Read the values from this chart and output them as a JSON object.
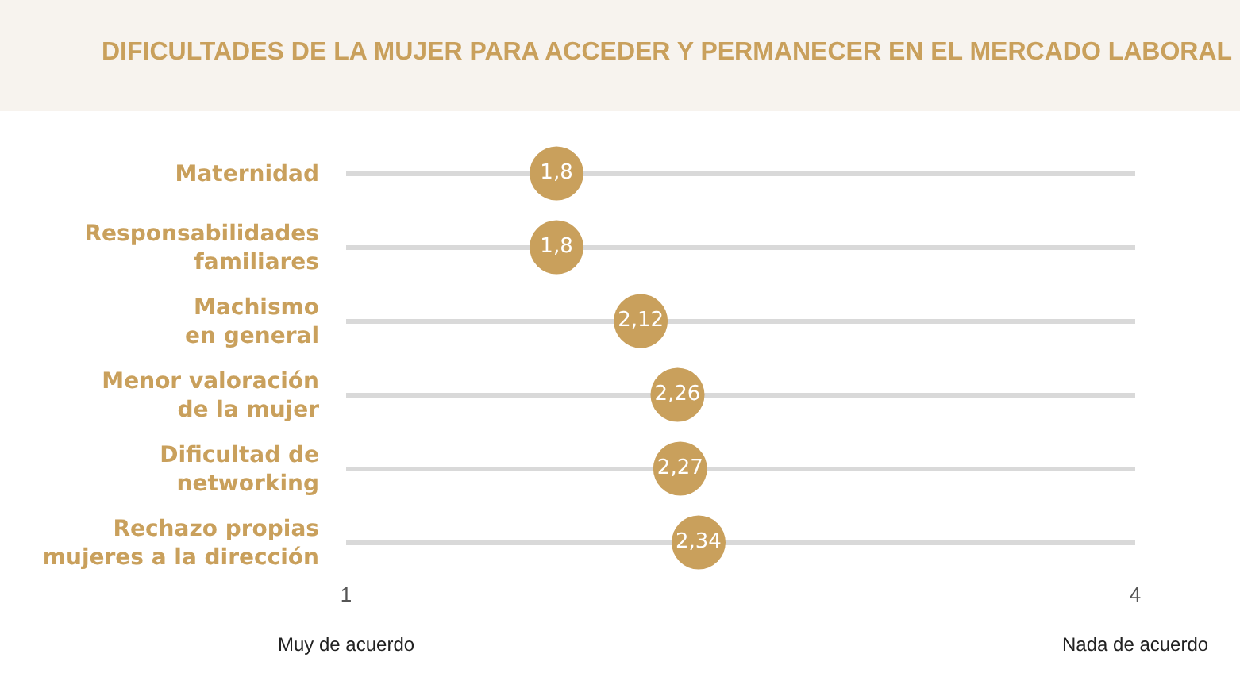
{
  "chart_data": {
    "type": "scatter",
    "orientation": "horizontal",
    "title": "DIFICULTADES DE LA MUJER PARA ACCEDER Y PERMANECER EN EL MERCADO LABORAL",
    "categories": [
      "Maternidad",
      "Responsabilidades\nfamiliares",
      "Machismo\nen general",
      "Menor valoración\nde la mujer",
      "Dificultad de\nnetworking",
      "Rechazo propias\nmujeres a la dirección"
    ],
    "values": [
      1.8,
      1.8,
      2.12,
      2.26,
      2.27,
      2.34
    ],
    "value_labels": [
      "1,8",
      "1,8",
      "2,12",
      "2,26",
      "2,27",
      "2,34"
    ],
    "color": "#c9a05c",
    "xlim": [
      1,
      4
    ],
    "xticks": [
      1,
      4
    ],
    "annotations": [
      "Muy de acuerdo",
      "Nada de acuerdo"
    ],
    "grid": true,
    "marker": "circle"
  }
}
